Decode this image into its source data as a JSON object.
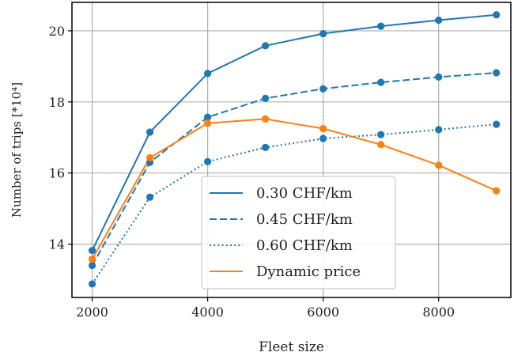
{
  "chart_data": {
    "type": "line",
    "title": "",
    "xlabel": "Fleet size",
    "ylabel": "Number of trips [*10⁴]",
    "x": [
      2000,
      3000,
      4000,
      5000,
      6000,
      7000,
      8000,
      9000
    ],
    "xlim": [
      1650,
      9250
    ],
    "ylim": [
      12.5,
      20.8
    ],
    "xticks": [
      2000,
      4000,
      6000,
      8000
    ],
    "yticks": [
      14,
      16,
      18,
      20
    ],
    "grid": true,
    "legend_position": "lower-center",
    "series": [
      {
        "name": "0.30 CHF/km",
        "style": "solid",
        "color": "#1f77b4",
        "values": [
          13.82,
          17.15,
          18.8,
          19.58,
          19.92,
          20.13,
          20.3,
          20.45
        ]
      },
      {
        "name": "0.45 CHF/km",
        "style": "dashed",
        "color": "#1f77b4",
        "values": [
          13.4,
          16.3,
          17.57,
          18.1,
          18.37,
          18.55,
          18.7,
          18.82
        ]
      },
      {
        "name": "0.60 CHF/km",
        "style": "dotted",
        "color": "#1f77b4",
        "values": [
          12.88,
          15.32,
          16.32,
          16.72,
          16.97,
          17.08,
          17.22,
          17.37
        ]
      },
      {
        "name": "Dynamic price",
        "style": "solid",
        "color": "#ff7f0e",
        "values": [
          13.58,
          16.43,
          17.4,
          17.52,
          17.25,
          16.8,
          16.22,
          15.5
        ]
      }
    ]
  }
}
